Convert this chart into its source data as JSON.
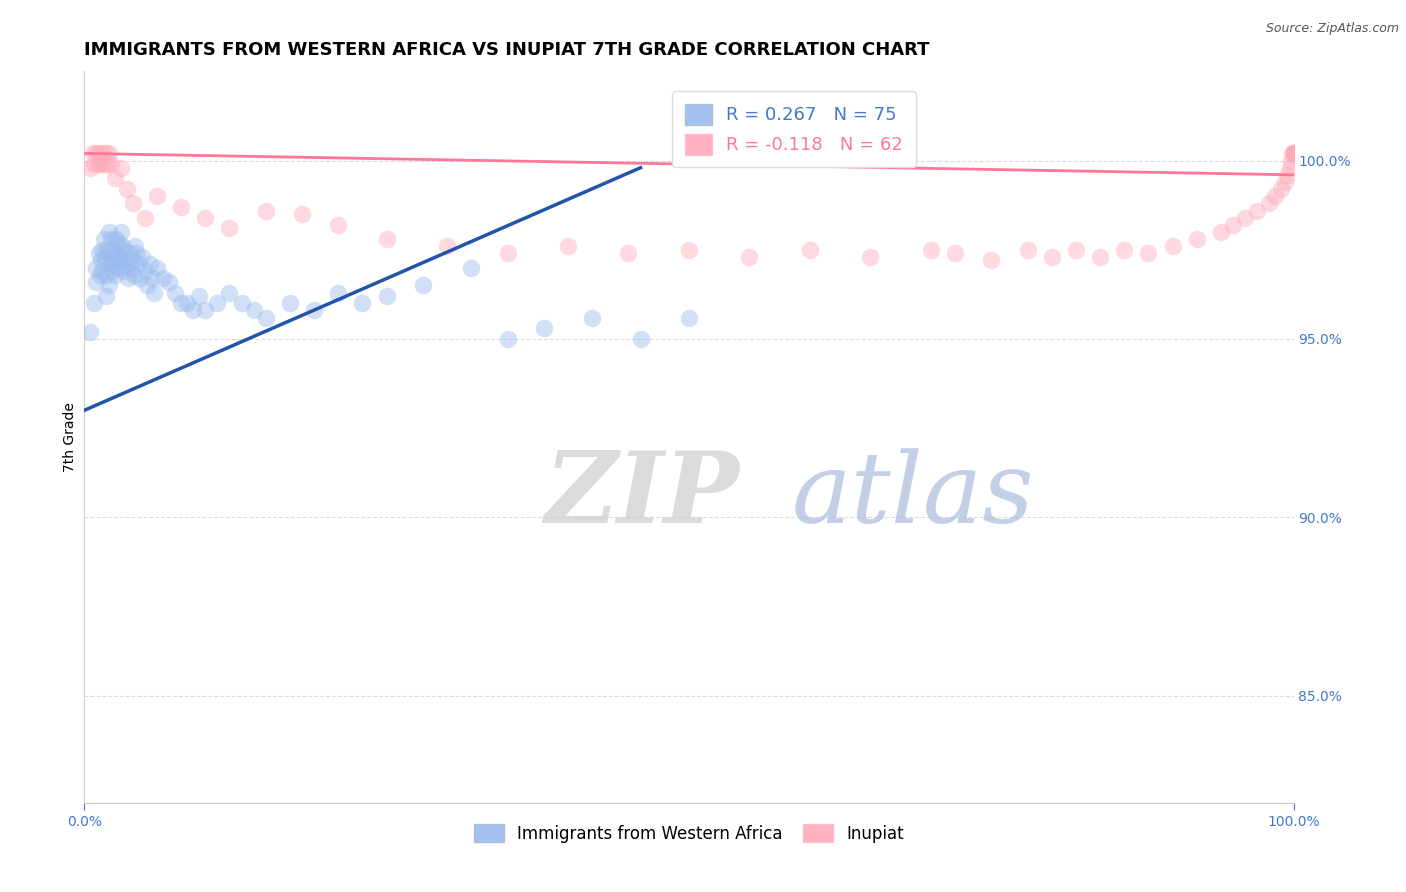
{
  "title": "IMMIGRANTS FROM WESTERN AFRICA VS INUPIAT 7TH GRADE CORRELATION CHART",
  "source_text": "Source: ZipAtlas.com",
  "ylabel": "7th Grade",
  "watermark_zip": "ZIP",
  "watermark_atlas": "atlas",
  "legend_blue_label": "Immigrants from Western Africa",
  "legend_pink_label": "Inupiat",
  "blue_R": 0.267,
  "blue_N": 75,
  "pink_R": -0.118,
  "pink_N": 62,
  "blue_color": "#99BBEE",
  "pink_color": "#FFAABB",
  "blue_line_color": "#2255AA",
  "pink_line_color": "#FF7799",
  "xlim": [
    0.0,
    1.0
  ],
  "ylim": [
    0.82,
    1.025
  ],
  "yticks": [
    0.85,
    0.9,
    0.95,
    1.0
  ],
  "ytick_labels": [
    "85.0%",
    "90.0%",
    "95.0%",
    "100.0%"
  ],
  "xtick_labels": [
    "0.0%",
    "100.0%"
  ],
  "xtick_pos": [
    0.0,
    1.0
  ],
  "axis_color": "#4477CC",
  "grid_color": "#CCCCCC",
  "title_fontsize": 13,
  "label_fontsize": 10,
  "tick_fontsize": 10,
  "legend_fontsize": 13,
  "watermark_zip_color": "#CCCCCC",
  "watermark_atlas_color": "#AABBDD",
  "watermark_fontsize": 72,
  "blue_scatter_x": [
    0.005,
    0.008,
    0.01,
    0.01,
    0.012,
    0.013,
    0.014,
    0.015,
    0.015,
    0.016,
    0.017,
    0.018,
    0.018,
    0.019,
    0.02,
    0.02,
    0.021,
    0.022,
    0.022,
    0.023,
    0.024,
    0.025,
    0.025,
    0.026,
    0.027,
    0.028,
    0.028,
    0.029,
    0.03,
    0.031,
    0.032,
    0.033,
    0.034,
    0.035,
    0.036,
    0.037,
    0.038,
    0.04,
    0.041,
    0.042,
    0.043,
    0.045,
    0.046,
    0.048,
    0.05,
    0.052,
    0.054,
    0.056,
    0.058,
    0.06,
    0.065,
    0.07,
    0.075,
    0.08,
    0.085,
    0.09,
    0.095,
    0.1,
    0.11,
    0.12,
    0.13,
    0.14,
    0.15,
    0.17,
    0.19,
    0.21,
    0.23,
    0.25,
    0.28,
    0.32,
    0.35,
    0.38,
    0.42,
    0.46,
    0.5
  ],
  "blue_scatter_y": [
    0.952,
    0.96,
    0.97,
    0.966,
    0.974,
    0.968,
    0.972,
    0.975,
    0.969,
    0.978,
    0.973,
    0.968,
    0.962,
    0.975,
    0.98,
    0.965,
    0.972,
    0.978,
    0.971,
    0.969,
    0.975,
    0.972,
    0.968,
    0.978,
    0.974,
    0.97,
    0.977,
    0.973,
    0.98,
    0.976,
    0.972,
    0.969,
    0.975,
    0.971,
    0.967,
    0.974,
    0.97,
    0.972,
    0.968,
    0.976,
    0.974,
    0.971,
    0.967,
    0.973,
    0.969,
    0.965,
    0.971,
    0.967,
    0.963,
    0.97,
    0.967,
    0.966,
    0.963,
    0.96,
    0.96,
    0.958,
    0.962,
    0.958,
    0.96,
    0.963,
    0.96,
    0.958,
    0.956,
    0.96,
    0.958,
    0.963,
    0.96,
    0.962,
    0.965,
    0.97,
    0.95,
    0.953,
    0.956,
    0.95,
    0.956
  ],
  "pink_scatter_x": [
    0.005,
    0.007,
    0.008,
    0.01,
    0.011,
    0.012,
    0.013,
    0.015,
    0.016,
    0.018,
    0.019,
    0.02,
    0.022,
    0.025,
    0.03,
    0.035,
    0.04,
    0.05,
    0.06,
    0.08,
    0.1,
    0.12,
    0.15,
    0.18,
    0.21,
    0.25,
    0.3,
    0.35,
    0.4,
    0.45,
    0.5,
    0.55,
    0.6,
    0.65,
    0.7,
    0.72,
    0.75,
    0.78,
    0.8,
    0.82,
    0.84,
    0.86,
    0.88,
    0.9,
    0.92,
    0.94,
    0.95,
    0.96,
    0.97,
    0.98,
    0.985,
    0.99,
    0.993,
    0.995,
    0.997,
    0.998,
    0.999,
    1.0,
    1.0,
    1.0,
    1.0,
    1.0
  ],
  "pink_scatter_y": [
    0.998,
    1.002,
    0.999,
    1.002,
    0.999,
    1.002,
    0.999,
    1.002,
    0.999,
    1.002,
    0.999,
    1.002,
    0.999,
    0.995,
    0.998,
    0.992,
    0.988,
    0.984,
    0.99,
    0.987,
    0.984,
    0.981,
    0.986,
    0.985,
    0.982,
    0.978,
    0.976,
    0.974,
    0.976,
    0.974,
    0.975,
    0.973,
    0.975,
    0.973,
    0.975,
    0.974,
    0.972,
    0.975,
    0.973,
    0.975,
    0.973,
    0.975,
    0.974,
    0.976,
    0.978,
    0.98,
    0.982,
    0.984,
    0.986,
    0.988,
    0.99,
    0.992,
    0.994,
    0.996,
    0.998,
    1.0,
    1.002,
    1.002,
    1.002,
    1.002,
    1.002,
    1.002
  ],
  "blue_trend_y_start": 0.93,
  "blue_trend_y_end": 0.998,
  "blue_trend_x_end": 0.46,
  "pink_trend_y_start": 1.002,
  "pink_trend_y_end": 0.996
}
